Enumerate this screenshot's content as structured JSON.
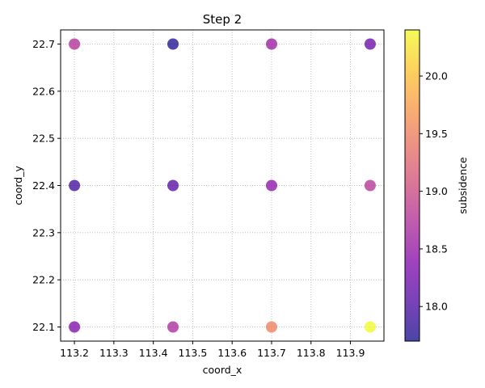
{
  "chart_data": {
    "type": "scatter",
    "title": "Step 2",
    "xlabel": "coord_x",
    "ylabel": "coord_y",
    "xlim": [
      113.165,
      113.985
    ],
    "ylim": [
      22.07,
      22.73
    ],
    "xticks": [
      113.2,
      113.3,
      113.4,
      113.5,
      113.6,
      113.7,
      113.8,
      113.9
    ],
    "xtick_labels": [
      "113.2",
      "113.3",
      "113.4",
      "113.5",
      "113.6",
      "113.7",
      "113.8",
      "113.9"
    ],
    "yticks": [
      22.1,
      22.2,
      22.3,
      22.4,
      22.5,
      22.6,
      22.7
    ],
    "ytick_labels": [
      "22.1",
      "22.2",
      "22.3",
      "22.4",
      "22.5",
      "22.6",
      "22.7"
    ],
    "grid": true,
    "colormap": "plasma",
    "colorbar": {
      "label": "subsidence",
      "range": [
        17.7,
        20.4
      ],
      "ticks": [
        18.0,
        18.5,
        19.0,
        19.5,
        20.0
      ],
      "tick_labels": [
        "18.0",
        "18.5",
        "19.0",
        "19.5",
        "20.0"
      ]
    },
    "points": [
      {
        "x": 113.2,
        "y": 22.7,
        "value": 18.75
      },
      {
        "x": 113.45,
        "y": 22.7,
        "value": 17.75
      },
      {
        "x": 113.7,
        "y": 22.7,
        "value": 18.55
      },
      {
        "x": 113.95,
        "y": 22.7,
        "value": 18.2
      },
      {
        "x": 113.2,
        "y": 22.4,
        "value": 17.95
      },
      {
        "x": 113.45,
        "y": 22.4,
        "value": 18.05
      },
      {
        "x": 113.7,
        "y": 22.4,
        "value": 18.45
      },
      {
        "x": 113.95,
        "y": 22.4,
        "value": 18.8
      },
      {
        "x": 113.2,
        "y": 22.1,
        "value": 18.35
      },
      {
        "x": 113.45,
        "y": 22.1,
        "value": 18.7
      },
      {
        "x": 113.7,
        "y": 22.1,
        "value": 19.5
      },
      {
        "x": 113.95,
        "y": 22.1,
        "value": 20.4
      }
    ]
  }
}
